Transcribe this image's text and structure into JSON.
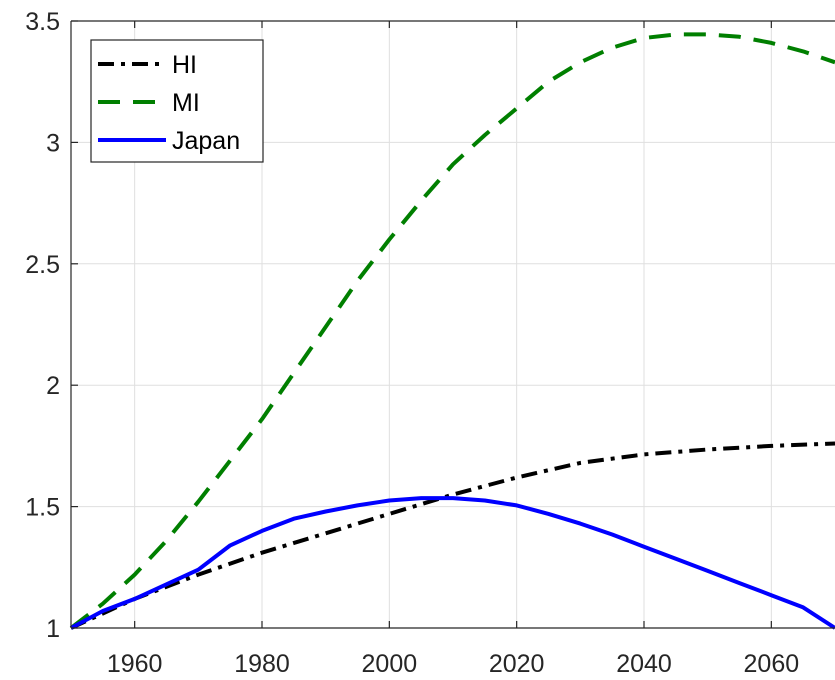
{
  "chart_data": {
    "type": "line",
    "title": "",
    "xlabel": "",
    "ylabel": "",
    "xlim": [
      1950,
      2070
    ],
    "ylim": [
      1,
      3.5
    ],
    "grid": true,
    "legend_position": "top-left",
    "x_ticks": [
      1960,
      1980,
      2000,
      2020,
      2040,
      2060
    ],
    "x_tick_labels": [
      "1960",
      "1980",
      "2000",
      "2020",
      "2040",
      "2060"
    ],
    "y_ticks": [
      1,
      1.5,
      2,
      2.5,
      3,
      3.5
    ],
    "y_tick_labels": [
      "1",
      "1.5",
      "2",
      "2.5",
      "3",
      "3.5"
    ],
    "series": [
      {
        "name": "HI",
        "color": "#000000",
        "style": "dash-dot",
        "x": [
          1950,
          1960,
          1970,
          1980,
          1990,
          2000,
          2010,
          2020,
          2030,
          2040,
          2050,
          2060,
          2070
        ],
        "y": [
          1.0,
          1.12,
          1.22,
          1.31,
          1.39,
          1.47,
          1.55,
          1.62,
          1.68,
          1.715,
          1.735,
          1.75,
          1.76
        ]
      },
      {
        "name": "MI",
        "color": "#007f00",
        "style": "dashed",
        "x": [
          1950,
          1955,
          1960,
          1965,
          1970,
          1975,
          1980,
          1985,
          1990,
          1995,
          2000,
          2005,
          2010,
          2015,
          2020,
          2025,
          2030,
          2035,
          2040,
          2045,
          2050,
          2055,
          2060,
          2065,
          2070
        ],
        "y": [
          1.0,
          1.1,
          1.22,
          1.36,
          1.52,
          1.69,
          1.86,
          2.05,
          2.24,
          2.43,
          2.6,
          2.76,
          2.91,
          3.03,
          3.14,
          3.25,
          3.33,
          3.39,
          3.43,
          3.445,
          3.445,
          3.435,
          3.41,
          3.375,
          3.33
        ]
      },
      {
        "name": "Japan",
        "color": "#0000ff",
        "style": "solid",
        "x": [
          1950,
          1955,
          1960,
          1965,
          1970,
          1975,
          1980,
          1985,
          1990,
          1995,
          2000,
          2005,
          2010,
          2015,
          2020,
          2025,
          2030,
          2035,
          2040,
          2045,
          2050,
          2055,
          2060,
          2065,
          2070
        ],
        "y": [
          1.0,
          1.07,
          1.12,
          1.18,
          1.24,
          1.34,
          1.4,
          1.45,
          1.48,
          1.505,
          1.525,
          1.535,
          1.535,
          1.525,
          1.505,
          1.47,
          1.43,
          1.385,
          1.335,
          1.285,
          1.235,
          1.185,
          1.135,
          1.085,
          1.0
        ]
      }
    ]
  }
}
